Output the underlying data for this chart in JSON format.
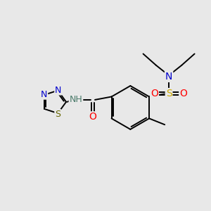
{
  "bg_color": "#e8e8e8",
  "colors": {
    "C": "#000000",
    "N": "#0000cc",
    "O": "#ff0000",
    "S_sulfonyl": "#ccaa00",
    "S_thiadiazole": "#666600",
    "NH": "#4a7a6a",
    "bond": "#000000"
  },
  "fig_size": [
    3.0,
    3.0
  ],
  "dpi": 100
}
